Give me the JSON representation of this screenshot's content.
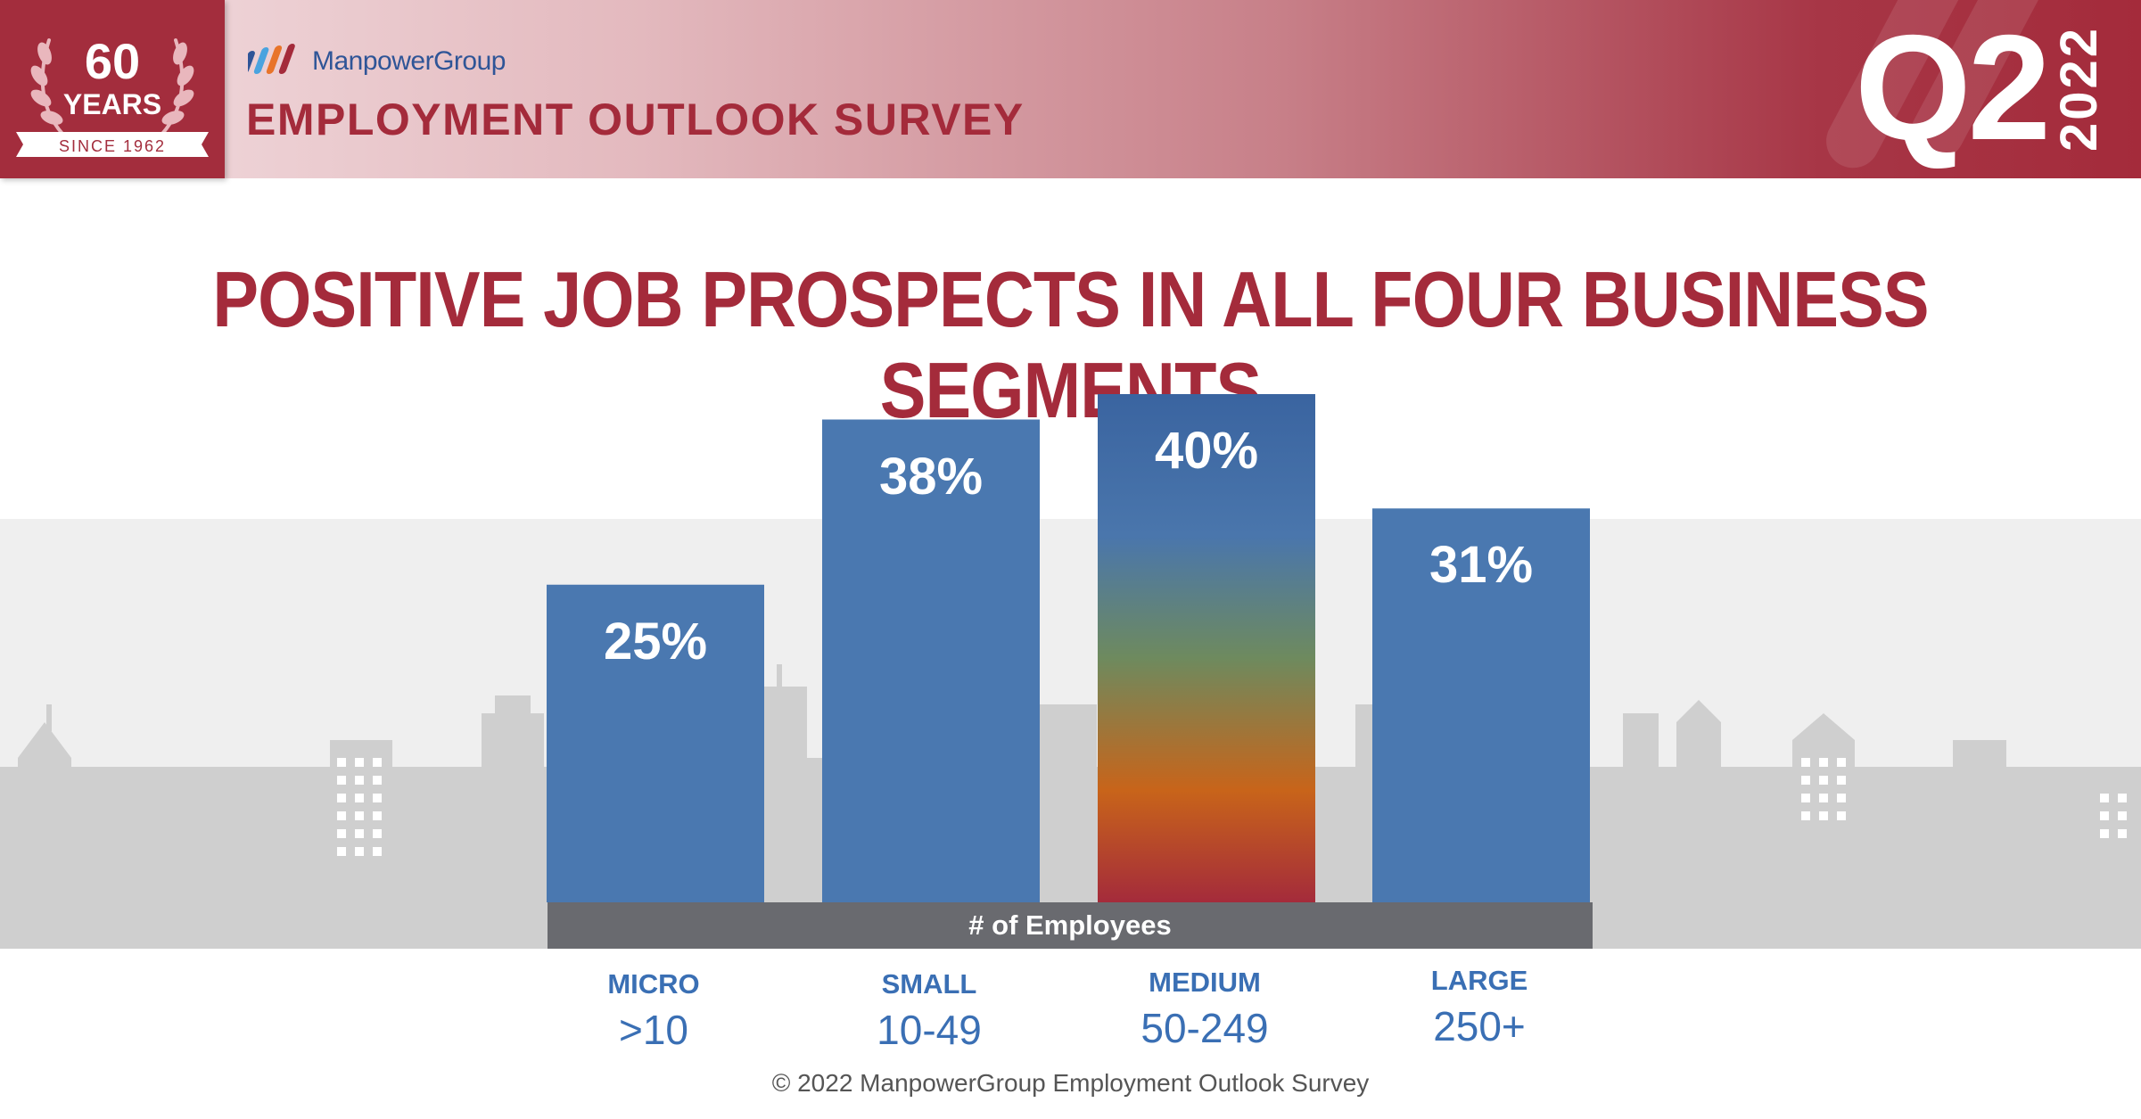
{
  "header": {
    "badge": {
      "number": "60",
      "years": "YEARS",
      "since": "SINCE 1962"
    },
    "brand": "ManpowerGroup",
    "survey_title": "EMPLOYMENT OUTLOOK SURVEY",
    "quarter": "Q2",
    "year": "2022"
  },
  "headline": "POSITIVE JOB PROSPECTS IN ALL FOUR BUSINESS SEGMENTS",
  "chart_data": {
    "type": "bar",
    "title": "POSITIVE JOB PROSPECTS IN ALL FOUR BUSINESS SEGMENTS",
    "xlabel": "# of Employees",
    "ylabel": "",
    "categories": [
      "MICRO",
      "SMALL",
      "MEDIUM",
      "LARGE"
    ],
    "category_ranges": [
      ">10",
      "10-49",
      "50-249",
      "250+"
    ],
    "values": [
      25,
      38,
      40,
      31
    ],
    "value_labels": [
      "25%",
      "38%",
      "40%",
      "31%"
    ],
    "ylim": [
      0,
      40
    ],
    "grid": false,
    "legend": "none",
    "colors": {
      "bar": "#4a78b0",
      "highlight_top": "#3a64a0",
      "highlight_mid": "#6e8a5e",
      "highlight_orange": "#c8641a",
      "highlight_bottom": "#a42b3b",
      "axis_band": "#696a6f"
    }
  },
  "footer": "© 2022 ManpowerGroup Employment Outlook Survey",
  "colors": {
    "brand_red": "#a42b3b",
    "brand_blue": "#2f5597",
    "skyline": "#cfcfcf",
    "sky_band": "#efefef"
  }
}
